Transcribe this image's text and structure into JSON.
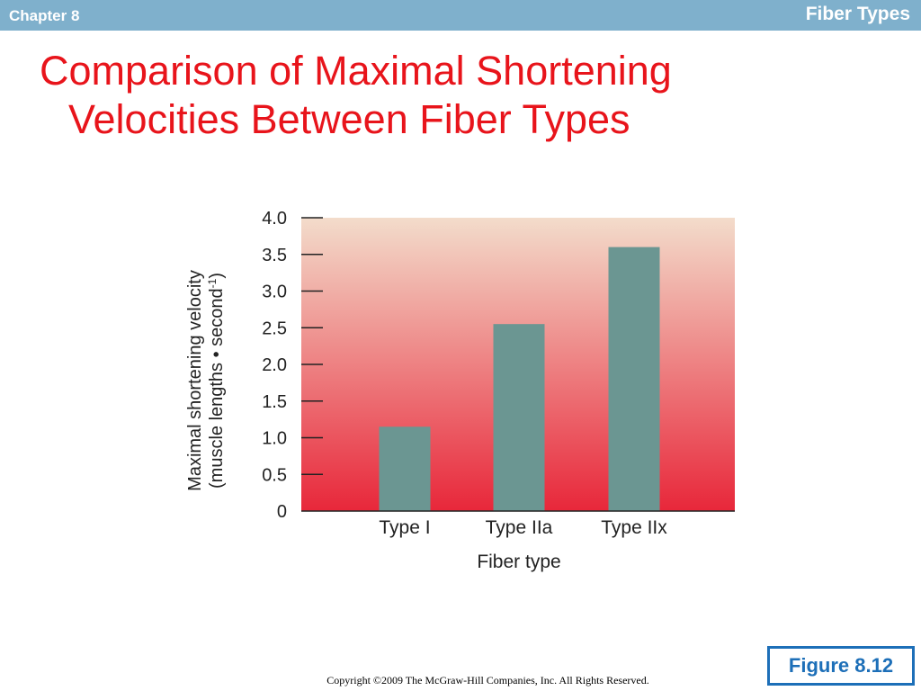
{
  "header": {
    "chapter": "Chapter 8",
    "topic": "Fiber Types"
  },
  "slide": {
    "title_line1": "Comparison of Maximal Shortening",
    "title_line2": "Velocities Between Fiber Types"
  },
  "chart_data": {
    "type": "bar",
    "categories": [
      "Type I",
      "Type IIa",
      "Type IIx"
    ],
    "values": [
      1.15,
      2.55,
      3.6
    ],
    "xlabel": "Fiber type",
    "ylabel_line1": "Maximal shortening velocity",
    "ylabel_line2": "(muscle lengths • second",
    "ylabel_sup": "-1",
    "ylabel_close": ")",
    "ylim": [
      0,
      4.0
    ],
    "yticks": [
      "0",
      "0.5",
      "1.0",
      "1.5",
      "2.0",
      "2.5",
      "3.0",
      "3.5",
      "4.0"
    ],
    "grid": false,
    "bar_color": "#6b9692",
    "background_top_color": "#f3dccb",
    "background_bottom_color": "#e8273a"
  },
  "footer": {
    "figure_label": "Figure 8.12",
    "copyright": "Copyright ©2009 The McGraw-Hill Companies, Inc. All Rights Reserved."
  }
}
